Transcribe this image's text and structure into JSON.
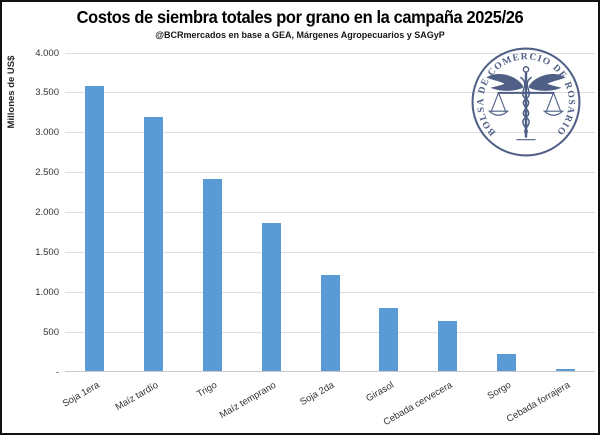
{
  "chart_data": {
    "type": "bar",
    "title": "Costos de siembra totales por grano en la campaña 2025/26",
    "subtitle": "@BCRmercados en base a GEA, Márgenes Agropecuarios y SAGyP",
    "ylabel": "Millones de US$",
    "xlabel": "",
    "categories": [
      "Soja 1era",
      "Maíz tardío",
      "Trigo",
      "Maíz temprano",
      "Soja 2da",
      "Girasol",
      "Cebada cervecera",
      "Sorgo",
      "Cebada forrajera"
    ],
    "values": [
      3580,
      3180,
      2410,
      1850,
      1210,
      790,
      630,
      215,
      30
    ],
    "ylim": [
      0,
      4000
    ],
    "ytick_step": 500,
    "ytick_labels": [
      "-",
      "500",
      "1.000",
      "1.500",
      "2.000",
      "2.500",
      "3.000",
      "3.500",
      "4.000"
    ],
    "grid": true,
    "legend": false,
    "bar_color": "#5b9bd5",
    "gridline_color": "#dedede",
    "axisline_color": "#c9c9c9"
  },
  "logo": {
    "ring_text": "BOLSA DE COMERCIO DE ROSARIO",
    "color": "#41527c"
  }
}
